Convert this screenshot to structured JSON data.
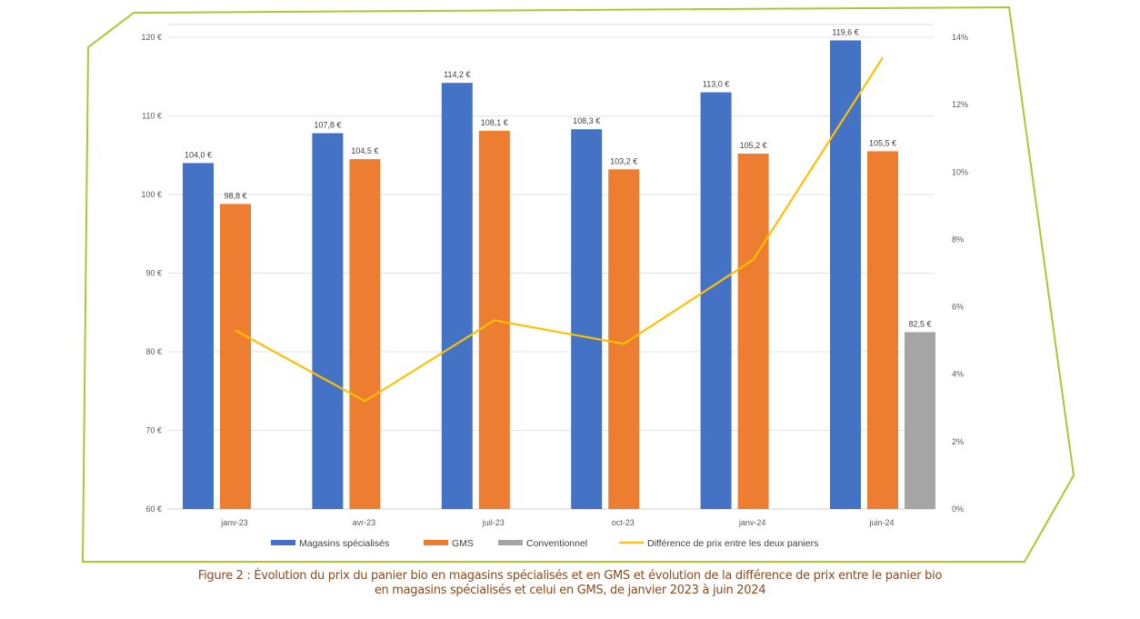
{
  "colors": {
    "magasins": "#4472C4",
    "gms": "#ED7D31",
    "conventionnel": "#A5A5A5",
    "difference": "#FFC000",
    "frame": "#A8C92F",
    "grid": "#E3E3E3",
    "caption": "#8A4A1E"
  },
  "caption": {
    "line1": "Figure 2 : Évolution du prix du panier bio en magasins spécialisés et en GMS et évolution de la différence de prix entre le panier bio",
    "line2": "en magasins spécialisés et celui en GMS, de janvier 2023 à juin 2024"
  },
  "chart_data": {
    "type": "bar",
    "title": "",
    "categories": [
      "janv-23",
      "avr-23",
      "juil-23",
      "oct-23",
      "janv-24",
      "juin-24"
    ],
    "series": [
      {
        "name": "Magasins spécialisés",
        "kind": "bar",
        "axis": "left",
        "color_key": "magasins",
        "values": [
          104.0,
          107.8,
          114.2,
          108.3,
          113.0,
          119.6
        ],
        "labels": [
          "104,0 €",
          "107,8 €",
          "114,2 €",
          "108,3 €",
          "113,0 €",
          "119,6 €"
        ]
      },
      {
        "name": "GMS",
        "kind": "bar",
        "axis": "left",
        "color_key": "gms",
        "values": [
          98.8,
          104.5,
          108.1,
          103.2,
          105.2,
          105.5
        ],
        "labels": [
          "98,8 €",
          "104,5 €",
          "108,1 €",
          "103,2 €",
          "105,2 €",
          "105,5 €"
        ]
      },
      {
        "name": "Conventionnel",
        "kind": "bar",
        "axis": "left",
        "color_key": "conventionnel",
        "values": [
          null,
          null,
          null,
          null,
          null,
          82.5
        ],
        "labels": [
          null,
          null,
          null,
          null,
          null,
          "82,5 €"
        ]
      },
      {
        "name": "Différence de prix entre les deux paniers",
        "kind": "line",
        "axis": "right",
        "color_key": "difference",
        "values": [
          5.3,
          3.2,
          5.6,
          4.9,
          7.4,
          13.4
        ]
      }
    ],
    "left_axis": {
      "label": "",
      "range": [
        60,
        120
      ],
      "ticks": [
        60,
        70,
        80,
        90,
        100,
        110,
        120
      ],
      "tick_labels": [
        "60 €",
        "70 €",
        "80 €",
        "90 €",
        "100 €",
        "110 €",
        "120 €"
      ]
    },
    "right_axis": {
      "label": "",
      "range": [
        0,
        14
      ],
      "ticks": [
        0,
        2,
        4,
        6,
        8,
        10,
        12,
        14
      ],
      "tick_labels": [
        "0%",
        "2%",
        "4%",
        "6%",
        "8%",
        "10%",
        "12%",
        "14%"
      ]
    },
    "xlabel": "",
    "grid": true,
    "legend": {
      "placement": "bottom",
      "entries": [
        {
          "label": "Magasins spécialisés",
          "marker": "bar",
          "color_key": "magasins"
        },
        {
          "label": "GMS",
          "marker": "bar",
          "color_key": "gms"
        },
        {
          "label": "Conventionnel",
          "marker": "bar",
          "color_key": "conventionnel"
        },
        {
          "label": "Différence de prix entre les deux paniers",
          "marker": "line",
          "color_key": "difference"
        }
      ]
    }
  }
}
